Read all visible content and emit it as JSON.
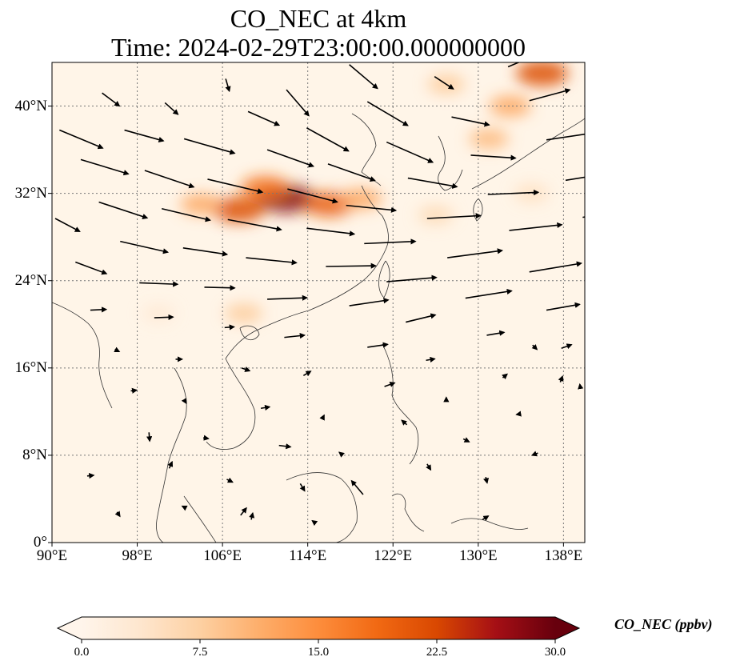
{
  "title": {
    "line1": "CO_NEC at 4km",
    "line2": "Time: 2024-02-29T23:00:00.000000000"
  },
  "map": {
    "lat_range": [
      0,
      44
    ],
    "lon_range": [
      90,
      140
    ],
    "lat_ticks": [
      {
        "value": 0,
        "label": "0°"
      },
      {
        "value": 8,
        "label": "8°N"
      },
      {
        "value": 16,
        "label": "16°N"
      },
      {
        "value": 24,
        "label": "24°N"
      },
      {
        "value": 32,
        "label": "32°N"
      },
      {
        "value": 40,
        "label": "40°N"
      }
    ],
    "lon_ticks": [
      {
        "value": 90,
        "label": "90°E"
      },
      {
        "value": 98,
        "label": "98°E"
      },
      {
        "value": 106,
        "label": "106°E"
      },
      {
        "value": 114,
        "label": "114°E"
      },
      {
        "value": 122,
        "label": "122°E"
      },
      {
        "value": 130,
        "label": "130°E"
      },
      {
        "value": 138,
        "label": "138°E"
      }
    ],
    "gridlines": true,
    "background_color": "#fff5e8"
  },
  "colorbar": {
    "label": "CO_NEC (ppbv)",
    "min": 0,
    "max": 30,
    "ticks": [
      "0.0",
      "7.5",
      "15.0",
      "22.5",
      "30.0"
    ],
    "colormap": [
      "#fff5eb",
      "#fee6ce",
      "#fdd0a2",
      "#fdae6b",
      "#fd8d3c",
      "#f16913",
      "#d94801",
      "#a50f15",
      "#67000d"
    ],
    "extend": "both"
  },
  "plumes": [
    {
      "lon": 112,
      "lat": 31.5,
      "value": 28
    },
    {
      "lon": 107.5,
      "lat": 30.5,
      "value": 22
    },
    {
      "lon": 116,
      "lat": 31,
      "value": 20
    },
    {
      "lon": 110,
      "lat": 32.5,
      "value": 18
    },
    {
      "lon": 119,
      "lat": 31.5,
      "value": 12
    },
    {
      "lon": 104,
      "lat": 31,
      "value": 12
    },
    {
      "lon": 136,
      "lat": 43,
      "value": 22
    },
    {
      "lon": 133,
      "lat": 40,
      "value": 12
    },
    {
      "lon": 131,
      "lat": 37,
      "value": 10
    },
    {
      "lon": 127,
      "lat": 42,
      "value": 8
    },
    {
      "lon": 126,
      "lat": 30,
      "value": 6
    },
    {
      "lon": 108,
      "lat": 21,
      "value": 8
    },
    {
      "lon": 100,
      "lat": 21,
      "value": 3
    },
    {
      "lon": 135,
      "lat": 32,
      "value": 5
    }
  ],
  "wind": [
    {
      "lon": 90.7,
      "lat": 37.8,
      "u": 6,
      "v": -2.5
    },
    {
      "lon": 92.7,
      "lat": 35.1,
      "u": 6.6,
      "v": -2
    },
    {
      "lon": 94.4,
      "lat": 31.2,
      "u": 6.7,
      "v": -2.2
    },
    {
      "lon": 96.4,
      "lat": 27.6,
      "u": 6.6,
      "v": -1.5
    },
    {
      "lon": 98.2,
      "lat": 23.8,
      "u": 5.3,
      "v": -0.2
    },
    {
      "lon": 99.6,
      "lat": 20.6,
      "u": 2.6,
      "v": 0.1
    },
    {
      "lon": 101.6,
      "lat": 16.8,
      "u": 0.9,
      "v": 0
    },
    {
      "lon": 102.4,
      "lat": 13.1,
      "u": 0.3,
      "v": -0.5
    },
    {
      "lon": 104.2,
      "lat": 9.6,
      "u": 0.7,
      "v": -0.1
    },
    {
      "lon": 106.4,
      "lat": 5.8,
      "u": 0.8,
      "v": -0.4
    },
    {
      "lon": 107.7,
      "lat": 2.5,
      "u": 0.8,
      "v": 1
    },
    {
      "lon": 94.7,
      "lat": 41.2,
      "u": 2.4,
      "v": -1.8
    },
    {
      "lon": 96.8,
      "lat": 37.8,
      "u": 5.4,
      "v": -1.5
    },
    {
      "lon": 98.7,
      "lat": 34.1,
      "u": 6.8,
      "v": -2.3
    },
    {
      "lon": 100.3,
      "lat": 30.6,
      "u": 6.7,
      "v": -1.6
    },
    {
      "lon": 102.3,
      "lat": 27,
      "u": 6.1,
      "v": -0.9
    },
    {
      "lon": 104.3,
      "lat": 23.4,
      "u": 4.2,
      "v": -0.1
    },
    {
      "lon": 106.2,
      "lat": 19.7,
      "u": 1.3,
      "v": 0.1
    },
    {
      "lon": 107.8,
      "lat": 16,
      "u": 1.1,
      "v": -0.4
    },
    {
      "lon": 109.6,
      "lat": 12.3,
      "u": 1.2,
      "v": 0.2
    },
    {
      "lon": 111.3,
      "lat": 8.9,
      "u": 1.6,
      "v": -0.2
    },
    {
      "lon": 113.3,
      "lat": 5.4,
      "u": 0.6,
      "v": -1
    },
    {
      "lon": 100.6,
      "lat": 40.3,
      "u": 1.8,
      "v": -1.6
    },
    {
      "lon": 102.4,
      "lat": 37,
      "u": 7,
      "v": -2
    },
    {
      "lon": 104.6,
      "lat": 33.3,
      "u": 7.6,
      "v": -1.8
    },
    {
      "lon": 106.5,
      "lat": 29.6,
      "u": 7.4,
      "v": -1.4
    },
    {
      "lon": 108.2,
      "lat": 26.1,
      "u": 7,
      "v": -0.7
    },
    {
      "lon": 110.2,
      "lat": 22.3,
      "u": 5.5,
      "v": 0.2
    },
    {
      "lon": 111.8,
      "lat": 18.8,
      "u": 2.8,
      "v": 0.3
    },
    {
      "lon": 113.6,
      "lat": 15.3,
      "u": 1,
      "v": 0.6
    },
    {
      "lon": 115.4,
      "lat": 11.4,
      "u": 0.2,
      "v": 0.4
    },
    {
      "lon": 117.3,
      "lat": 8,
      "u": -0.5,
      "v": 0.4
    },
    {
      "lon": 119.2,
      "lat": 4.4,
      "u": -1.6,
      "v": 1.9
    },
    {
      "lon": 106.3,
      "lat": 42.5,
      "u": 0.5,
      "v": -1.7
    },
    {
      "lon": 108.4,
      "lat": 39.5,
      "u": 4.3,
      "v": -1.9
    },
    {
      "lon": 110.2,
      "lat": 36,
      "u": 6.4,
      "v": -2.3
    },
    {
      "lon": 112.1,
      "lat": 32.4,
      "u": 6.9,
      "v": -1.8
    },
    {
      "lon": 113.9,
      "lat": 28.8,
      "u": 6.6,
      "v": -0.8
    },
    {
      "lon": 115.7,
      "lat": 25.3,
      "u": 6.9,
      "v": 0.1
    },
    {
      "lon": 117.9,
      "lat": 21.7,
      "u": 5.4,
      "v": 0.8
    },
    {
      "lon": 119.6,
      "lat": 17.9,
      "u": 2.8,
      "v": 0.4
    },
    {
      "lon": 121.2,
      "lat": 14.3,
      "u": 1.4,
      "v": 0.5
    },
    {
      "lon": 123.3,
      "lat": 10.8,
      "u": -0.7,
      "v": 0.6
    },
    {
      "lon": 125.2,
      "lat": 7.2,
      "u": 0.5,
      "v": -0.8
    },
    {
      "lon": 112,
      "lat": 41.5,
      "u": 3.1,
      "v": -3.6
    },
    {
      "lon": 113.9,
      "lat": 38,
      "u": 5.8,
      "v": -3.2
    },
    {
      "lon": 115.9,
      "lat": 34.7,
      "u": 6.5,
      "v": -2.3
    },
    {
      "lon": 117.6,
      "lat": 30.9,
      "u": 6.9,
      "v": -0.7
    },
    {
      "lon": 119.3,
      "lat": 27.4,
      "u": 7.1,
      "v": 0.3
    },
    {
      "lon": 121.4,
      "lat": 23.9,
      "u": 6.9,
      "v": 0.6
    },
    {
      "lon": 123.2,
      "lat": 20.2,
      "u": 4.1,
      "v": 1
    },
    {
      "lon": 125.1,
      "lat": 16.7,
      "u": 1.2,
      "v": 0.2
    },
    {
      "lon": 127,
      "lat": 13.1,
      "u": 0,
      "v": 0.3
    },
    {
      "lon": 128.6,
      "lat": 9.5,
      "u": 0.8,
      "v": -0.4
    },
    {
      "lon": 130.7,
      "lat": 6,
      "u": 0.2,
      "v": -0.8
    },
    {
      "lon": 117.9,
      "lat": 43.8,
      "u": 3.9,
      "v": -3.3
    },
    {
      "lon": 119.6,
      "lat": 40.4,
      "u": 5.6,
      "v": -3.3
    },
    {
      "lon": 121.4,
      "lat": 36.7,
      "u": 6.4,
      "v": -2.8
    },
    {
      "lon": 123.4,
      "lat": 33.4,
      "u": 6.8,
      "v": -1.2
    },
    {
      "lon": 125.2,
      "lat": 29.7,
      "u": 7.4,
      "v": 0.4
    },
    {
      "lon": 127.1,
      "lat": 26.1,
      "u": 7.6,
      "v": 1
    },
    {
      "lon": 128.8,
      "lat": 22.4,
      "u": 6.4,
      "v": 1
    },
    {
      "lon": 130.8,
      "lat": 19,
      "u": 2.4,
      "v": 0.4
    },
    {
      "lon": 132.3,
      "lat": 15.1,
      "u": 0.6,
      "v": 0.5
    },
    {
      "lon": 134,
      "lat": 11.8,
      "u": -0.6,
      "v": -0.1
    },
    {
      "lon": 135.6,
      "lat": 8.2,
      "u": -0.8,
      "v": -0.3
    },
    {
      "lon": 125.9,
      "lat": 42.7,
      "u": 2.6,
      "v": -1.7
    },
    {
      "lon": 127.5,
      "lat": 39,
      "u": 5.2,
      "v": -1.1
    },
    {
      "lon": 129.3,
      "lat": 35.5,
      "u": 6.2,
      "v": -0.4
    },
    {
      "lon": 130.9,
      "lat": 31.9,
      "u": 7,
      "v": 0.3
    },
    {
      "lon": 132.9,
      "lat": 28.6,
      "u": 7.3,
      "v": 0.8
    },
    {
      "lon": 134.8,
      "lat": 24.8,
      "u": 7.2,
      "v": 1.2
    },
    {
      "lon": 136.4,
      "lat": 21.3,
      "u": 4.6,
      "v": 0.8
    },
    {
      "lon": 137.8,
      "lat": 17.8,
      "u": 1.4,
      "v": 0.5
    },
    {
      "lon": 139.6,
      "lat": 14.1,
      "u": -0.1,
      "v": 0.6
    },
    {
      "lon": 132.8,
      "lat": 43.6,
      "u": 4.8,
      "v": 2
    },
    {
      "lon": 134.8,
      "lat": 40.5,
      "u": 5.6,
      "v": 1.5
    },
    {
      "lon": 136.4,
      "lat": 36.9,
      "u": 6.1,
      "v": 0.9
    },
    {
      "lon": 138.2,
      "lat": 33.2,
      "u": 7.5,
      "v": 1.2
    },
    {
      "lon": 139.8,
      "lat": 29.8,
      "u": 7.1,
      "v": 1.6
    },
    {
      "lon": 135.1,
      "lat": 18.1,
      "u": 0.6,
      "v": -0.6
    },
    {
      "lon": 137.7,
      "lat": 14.7,
      "u": 0.3,
      "v": 0.8
    },
    {
      "lon": 90.3,
      "lat": 29.7,
      "u": 3.4,
      "v": -1.8
    },
    {
      "lon": 92.2,
      "lat": 25.7,
      "u": 4.3,
      "v": -1.6
    },
    {
      "lon": 93.6,
      "lat": 21.3,
      "u": 2.2,
      "v": 0.1
    },
    {
      "lon": 95.9,
      "lat": 17.7,
      "u": 0.6,
      "v": -0.3
    },
    {
      "lon": 97.4,
      "lat": 13.9,
      "u": 0.8,
      "v": 0.1
    },
    {
      "lon": 99.1,
      "lat": 10.1,
      "u": 0.1,
      "v": -1.2
    },
    {
      "lon": 101,
      "lat": 6.8,
      "u": 0.4,
      "v": 0.9
    },
    {
      "lon": 102.5,
      "lat": 3.2,
      "u": -0.4,
      "v": 0.2
    },
    {
      "lon": 93.3,
      "lat": 6.1,
      "u": 0.9,
      "v": 0.1
    },
    {
      "lon": 96.1,
      "lat": 2.8,
      "u": 0.4,
      "v": -0.6
    },
    {
      "lon": 108.7,
      "lat": 2.1,
      "u": 0.2,
      "v": 0.9
    },
    {
      "lon": 114.7,
      "lat": 1.8,
      "u": -0.4,
      "v": 0.3
    },
    {
      "lon": 130.4,
      "lat": 2.1,
      "u": 0.8,
      "v": 0.5
    }
  ]
}
